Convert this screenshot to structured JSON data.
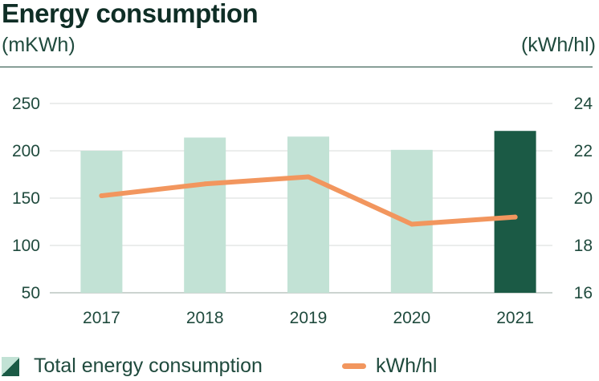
{
  "chart_data": {
    "type": "bar",
    "title": "Energy consumption",
    "y_left_unit": "(mKWh)",
    "y_right_unit": "(kWh/hl)",
    "categories": [
      "2017",
      "2018",
      "2019",
      "2020",
      "2021"
    ],
    "ylim_left": [
      50,
      250
    ],
    "yticks_left": [
      "250",
      "200",
      "150",
      "100",
      "50"
    ],
    "ylim_right": [
      16,
      24
    ],
    "yticks_right": [
      "24",
      "22",
      "20",
      "18",
      "16"
    ],
    "grid": true,
    "legend_position": "bottom",
    "series": [
      {
        "name": "Total energy consumption",
        "type": "bar",
        "axis": "left",
        "values": [
          200,
          214,
          215,
          201,
          221
        ],
        "colors": [
          "#c2e2d5",
          "#c2e2d5",
          "#c2e2d5",
          "#c2e2d5",
          "#1b5a45"
        ]
      },
      {
        "name": "kWh/hl",
        "type": "line",
        "axis": "right",
        "values": [
          20.1,
          20.6,
          20.9,
          18.9,
          19.2
        ],
        "color": "#f2965e"
      }
    ]
  }
}
